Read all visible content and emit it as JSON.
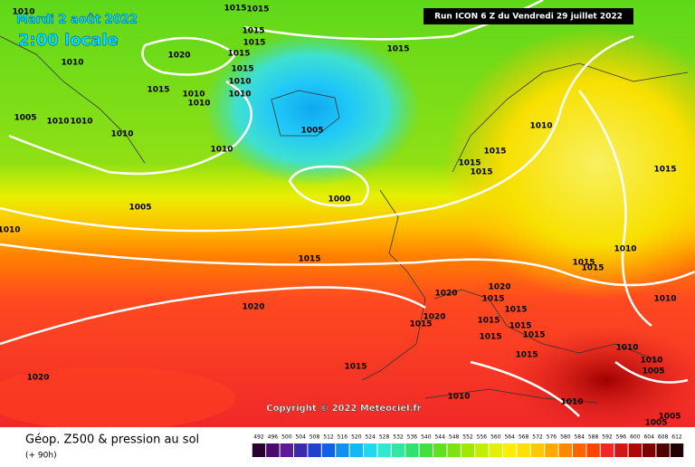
{
  "header": {
    "date": "Mardi 2 août 2022",
    "time": "2:00 locale",
    "run": "Run ICON 6 Z du Vendredi 29 juillet 2022"
  },
  "copyright": "Copyright © 2022 Meteociel.fr",
  "footer": {
    "title": "Géop. Z500 & pression au sol",
    "lead": "(+ 90h)"
  },
  "isobar_labels": [
    1010,
    1015,
    1015,
    1015,
    1015,
    1020,
    1015,
    1010,
    1015,
    1015,
    1015,
    1010,
    1010,
    1010,
    1010,
    1005,
    1010,
    1010,
    1010,
    1005,
    1010,
    1010,
    1015,
    1015,
    1015,
    1015,
    1000,
    1005,
    1010,
    1010,
    1015,
    1015,
    1015,
    1020,
    1020,
    1015,
    1010,
    1015,
    1020,
    1020,
    1015,
    1015,
    1015,
    1015,
    1015,
    1010,
    1015,
    1010,
    1005,
    1020,
    1015,
    1010,
    1010,
    1005,
    1005
  ],
  "scale": {
    "labels": [
      492,
      496,
      500,
      504,
      508,
      512,
      516,
      520,
      524,
      528,
      532,
      536,
      540,
      544,
      548,
      552,
      556,
      560,
      564,
      568,
      572,
      576,
      580,
      584,
      588,
      592,
      596,
      600,
      604,
      608,
      612
    ],
    "colors": [
      "#2a0030",
      "#4a0a6a",
      "#5a1a9a",
      "#3a2ab0",
      "#2040d0",
      "#1060e8",
      "#1090f0",
      "#10b8f8",
      "#20d8f0",
      "#30e8d0",
      "#30e8a0",
      "#30e070",
      "#40e040",
      "#60e020",
      "#80e010",
      "#a0e800",
      "#c0f000",
      "#e0f000",
      "#f8f000",
      "#ffe000",
      "#ffc800",
      "#ffa800",
      "#ff8800",
      "#ff6400",
      "#ff4400",
      "#f02828",
      "#d01818",
      "#b00808",
      "#800000",
      "#500000",
      "#200000"
    ]
  }
}
